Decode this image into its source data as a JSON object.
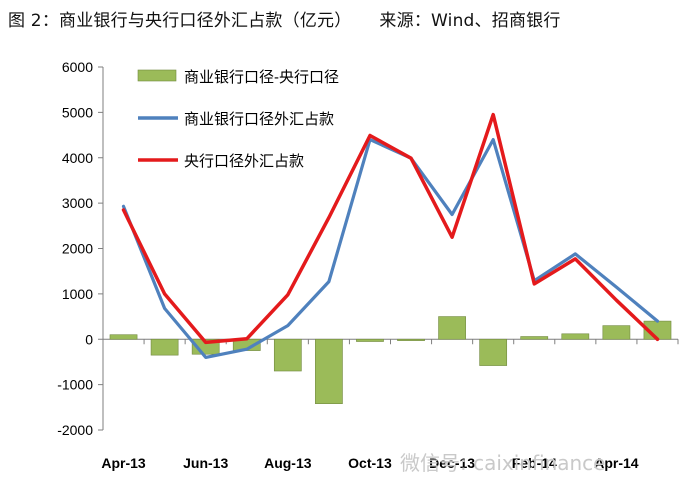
{
  "title": "图 2：商业银行与央行口径外汇占款（亿元）",
  "source": "来源：Wind、招商银行",
  "watermark": "微信号: caixinfinance",
  "chart_data": {
    "type": "bar+line",
    "x": [
      "Apr-13",
      "May-13",
      "Jun-13",
      "Jul-13",
      "Aug-13",
      "Sep-13",
      "Oct-13",
      "Nov-13",
      "Dec-13",
      "Jan-14",
      "Feb-14",
      "Mar-14",
      "Apr-14",
      "May-14"
    ],
    "xtick_labels": [
      "Apr-13",
      "Jun-13",
      "Aug-13",
      "Oct-13",
      "Dec-13",
      "Feb-14",
      "Apr-14"
    ],
    "ylim": [
      -2000,
      6000
    ],
    "yticks": [
      -2000,
      -1000,
      0,
      1000,
      2000,
      3000,
      4000,
      5000,
      6000
    ],
    "series": [
      {
        "name": "商业银行口径-央行口径",
        "type": "bar",
        "color": "#9bbb59",
        "values": [
          100,
          -350,
          -330,
          -250,
          -700,
          -1420,
          -50,
          -30,
          500,
          -580,
          60,
          120,
          300,
          400
        ]
      },
      {
        "name": "商业银行口径外汇占款",
        "type": "line",
        "color": "#4f81bd",
        "values": [
          2930,
          680,
          -400,
          -220,
          300,
          1270,
          4400,
          3990,
          2750,
          4400,
          1290,
          1880,
          1150,
          400
        ]
      },
      {
        "name": "央行口径外汇占款",
        "type": "line",
        "color": "#e41a1c",
        "values": [
          2850,
          1000,
          -70,
          10,
          980,
          2680,
          4490,
          3990,
          2250,
          4950,
          1220,
          1770,
          860,
          0
        ]
      }
    ],
    "legend_position": "top-left"
  }
}
